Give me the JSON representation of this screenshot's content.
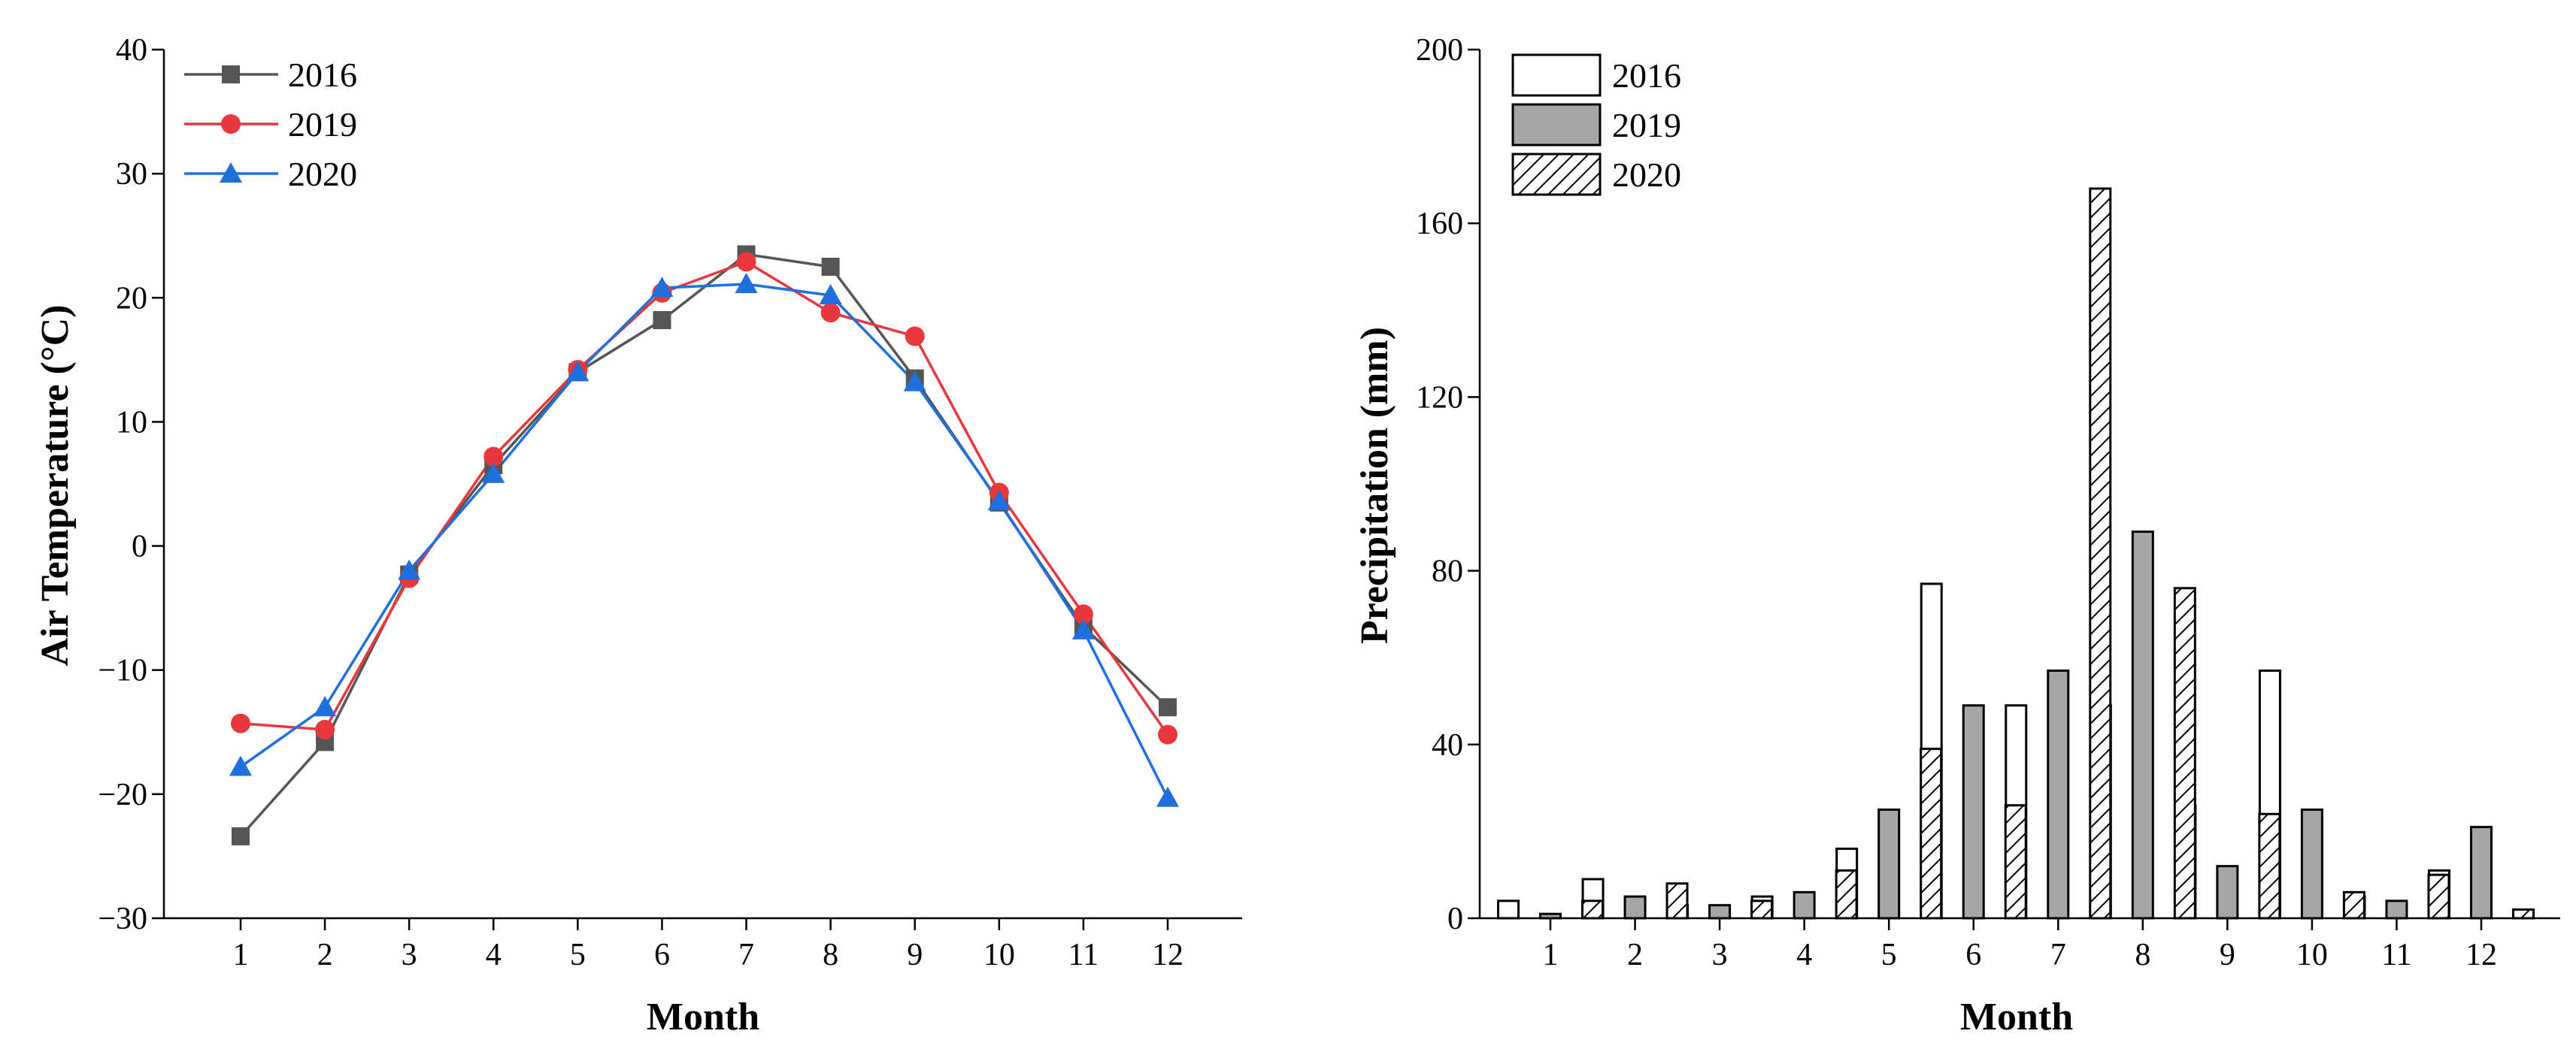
{
  "chart_data": [
    {
      "type": "line",
      "xlabel": "Month",
      "ylabel": "Air Temperature (°C)",
      "ylim": [
        -30,
        40
      ],
      "yticks": [
        -30,
        -20,
        -10,
        0,
        10,
        20,
        30,
        40
      ],
      "ytick_labels": [
        "−30",
        "−20",
        "−10",
        "0",
        "10",
        "20",
        "30",
        "40"
      ],
      "x": [
        1,
        2,
        3,
        4,
        5,
        6,
        7,
        8,
        9,
        10,
        11,
        12
      ],
      "xtick_labels": [
        "1",
        "2",
        "3",
        "4",
        "5",
        "6",
        "7",
        "8",
        "9",
        "10",
        "11",
        "12"
      ],
      "legend_position": "top-left",
      "series": [
        {
          "name": "2016",
          "color": "#555555",
          "marker": "square",
          "values": [
            -23.4,
            -15.8,
            -2.3,
            6.5,
            14.0,
            18.2,
            23.5,
            22.5,
            13.5,
            3.5,
            -6.5,
            -13.0
          ]
        },
        {
          "name": "2019",
          "color": "#e8383d",
          "marker": "circle",
          "values": [
            -14.3,
            -14.8,
            -2.6,
            7.2,
            14.2,
            20.4,
            22.9,
            18.8,
            16.9,
            4.3,
            -5.5,
            -15.2
          ]
        },
        {
          "name": "2020",
          "color": "#1f6fdc",
          "marker": "triangle",
          "values": [
            -17.8,
            -13.0,
            -2.0,
            5.8,
            14.0,
            20.8,
            21.1,
            20.2,
            13.2,
            3.6,
            -6.8,
            -20.3
          ]
        }
      ]
    },
    {
      "type": "bar",
      "xlabel": "Month",
      "ylabel": "Precipitation (mm)",
      "ylim": [
        0,
        200
      ],
      "yticks": [
        0,
        40,
        80,
        120,
        160,
        200
      ],
      "ytick_labels": [
        "0",
        "40",
        "80",
        "120",
        "160",
        "200"
      ],
      "categories": [
        "1",
        "2",
        "3",
        "4",
        "5",
        "6",
        "7",
        "8",
        "9",
        "10",
        "11",
        "12"
      ],
      "legend_position": "top-left",
      "series": [
        {
          "name": "2016",
          "fill": "#ffffff",
          "values": [
            4,
            9,
            3,
            5,
            16,
            77,
            49,
            49,
            26,
            57,
            5,
            11
          ]
        },
        {
          "name": "2019",
          "fill": "#a6a6a6",
          "values": [
            1,
            5,
            3,
            6,
            25,
            49,
            57,
            89,
            12,
            25,
            4,
            21
          ]
        },
        {
          "name": "2020",
          "fill": "hatch",
          "values": [
            4,
            8,
            4,
            11,
            39,
            26,
            168,
            76,
            24,
            6,
            10,
            2
          ]
        }
      ]
    }
  ]
}
